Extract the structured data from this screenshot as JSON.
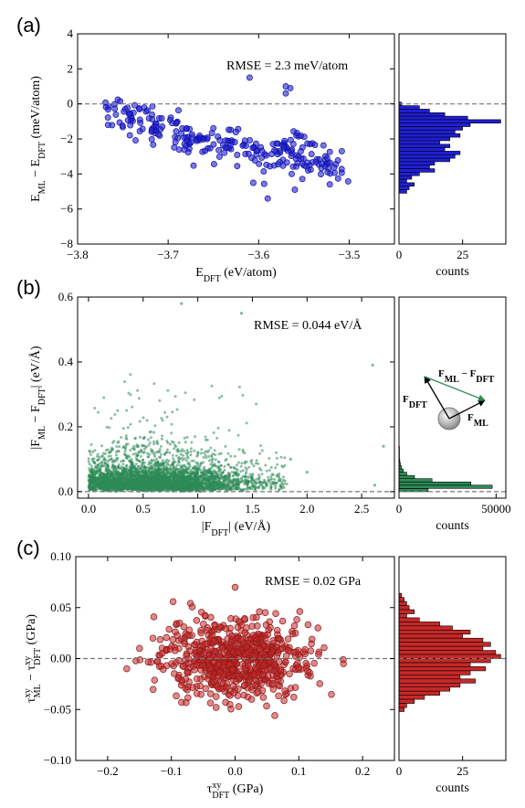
{
  "chart_data": [
    {
      "type": "scatter",
      "panel_label": "(a)",
      "annotation": "RMSE = 2.3 meV/atom",
      "xlabel": "E_DFT (eV/atom)",
      "ylabel": "E_ML − E_DFT (meV/atom)",
      "xlim": [
        -3.8,
        -3.45
      ],
      "ylim": [
        -8,
        4
      ],
      "xticks": [
        "−3.8",
        "−3.7",
        "−3.6",
        "−3.5"
      ],
      "yticks": [
        "−8",
        "−6",
        "−4",
        "−2",
        "0",
        "2",
        "4"
      ],
      "reference_line_y": 0,
      "color": "#1f1fd6",
      "clusters": [
        {
          "x": -3.77,
          "y": -0.2,
          "n": 8
        },
        {
          "x": -3.74,
          "y": -0.7,
          "n": 28
        },
        {
          "x": -3.715,
          "y": -1.3,
          "n": 30
        },
        {
          "x": -3.685,
          "y": -1.6,
          "n": 26
        },
        {
          "x": -3.66,
          "y": -2.0,
          "n": 22
        },
        {
          "x": -3.63,
          "y": -2.4,
          "n": 30
        },
        {
          "x": -3.6,
          "y": -2.8,
          "n": 22
        },
        {
          "x": -3.575,
          "y": -3.0,
          "n": 28
        },
        {
          "x": -3.555,
          "y": -2.3,
          "n": 20
        },
        {
          "x": -3.535,
          "y": -3.4,
          "n": 26
        },
        {
          "x": -3.52,
          "y": -3.6,
          "n": 16
        }
      ],
      "outliers": [
        {
          "x": -3.61,
          "y": 1.5
        },
        {
          "x": -3.57,
          "y": 1.0
        },
        {
          "x": -3.57,
          "y": 0.6
        },
        {
          "x": -3.565,
          "y": 0.9
        },
        {
          "x": -3.56,
          "y": -4.9
        },
        {
          "x": -3.59,
          "y": -5.4
        }
      ],
      "histogram": {
        "xlabel": "counts",
        "xticks": [
          "0",
          "25"
        ],
        "xlim": [
          0,
          42
        ],
        "bin_width": 0.2,
        "bins": [
          {
            "y": 0.0,
            "c": 1
          },
          {
            "y": -0.2,
            "c": 8
          },
          {
            "y": -0.4,
            "c": 12
          },
          {
            "y": -0.6,
            "c": 18
          },
          {
            "y": -0.8,
            "c": 27
          },
          {
            "y": -1.0,
            "c": 40
          },
          {
            "y": -1.2,
            "c": 28
          },
          {
            "y": -1.4,
            "c": 25
          },
          {
            "y": -1.6,
            "c": 22
          },
          {
            "y": -1.8,
            "c": 24
          },
          {
            "y": -2.0,
            "c": 20
          },
          {
            "y": -2.2,
            "c": 16
          },
          {
            "y": -2.4,
            "c": 20
          },
          {
            "y": -2.6,
            "c": 18
          },
          {
            "y": -2.8,
            "c": 24
          },
          {
            "y": -3.0,
            "c": 22
          },
          {
            "y": -3.2,
            "c": 20
          },
          {
            "y": -3.4,
            "c": 14
          },
          {
            "y": -3.6,
            "c": 12
          },
          {
            "y": -3.8,
            "c": 14
          },
          {
            "y": -4.0,
            "c": 8
          },
          {
            "y": -4.2,
            "c": 5
          },
          {
            "y": -4.4,
            "c": 3
          },
          {
            "y": -4.6,
            "c": 6
          },
          {
            "y": -4.8,
            "c": 4
          },
          {
            "y": -5.0,
            "c": 3
          }
        ]
      }
    },
    {
      "type": "scatter",
      "panel_label": "(b)",
      "annotation": "RMSE = 0.044 eV/Å",
      "xlabel": "|F_DFT| (eV/Å)",
      "ylabel": "|F_ML − F_DFT| (eV/Å)",
      "xlim": [
        -0.1,
        2.8
      ],
      "ylim": [
        -0.02,
        0.6
      ],
      "xticks": [
        "0.0",
        "0.5",
        "1.0",
        "1.5",
        "2.0",
        "2.5"
      ],
      "yticks": [
        "0.0",
        "0.2",
        "0.4",
        "0.6"
      ],
      "reference_line_y": 0,
      "color": "#2e8b57",
      "histogram": {
        "xlabel": "counts",
        "xticks": [
          "0",
          "50000"
        ],
        "xlim": [
          0,
          55000
        ],
        "bin_width": 0.01,
        "bins": [
          {
            "y": 0.005,
            "c": 15000
          },
          {
            "y": 0.015,
            "c": 48000
          },
          {
            "y": 0.025,
            "c": 37000
          },
          {
            "y": 0.035,
            "c": 17000
          },
          {
            "y": 0.045,
            "c": 8000
          },
          {
            "y": 0.055,
            "c": 4000
          },
          {
            "y": 0.065,
            "c": 2200
          },
          {
            "y": 0.075,
            "c": 1200
          },
          {
            "y": 0.085,
            "c": 700
          },
          {
            "y": 0.095,
            "c": 400
          },
          {
            "y": 0.105,
            "c": 250
          },
          {
            "y": 0.115,
            "c": 150
          },
          {
            "y": 0.125,
            "c": 100
          },
          {
            "y": 0.135,
            "c": 60
          }
        ]
      },
      "inset_labels": {
        "f_dft": "F",
        "f_dft_sub": "DFT",
        "f_ml": "F",
        "f_ml_sub": "ML",
        "diff": "F",
        "diff_sub1": "ML",
        "diff_mid": " − F",
        "diff_sub2": "DFT"
      }
    },
    {
      "type": "scatter",
      "panel_label": "(c)",
      "annotation": "RMSE =  0.02 GPa",
      "xlabel": "τ^xy_DFT (GPa)",
      "ylabel": "τ^xy_ML − τ^xy_DFT (GPa)",
      "xlim": [
        -0.25,
        0.25
      ],
      "ylim": [
        -0.1,
        0.1
      ],
      "xticks": [
        "−0.2",
        "−0.1",
        "0.0",
        "0.1",
        "0.2"
      ],
      "yticks": [
        "−0.10",
        "−0.05",
        "0.00",
        "0.05",
        "0.10"
      ],
      "reference_line_y": 0,
      "color": "#c62828",
      "histogram": {
        "xlabel": "counts",
        "xticks": [
          "0",
          "25"
        ],
        "xlim": [
          0,
          42
        ],
        "bin_width": 0.004,
        "bins": [
          {
            "y": 0.062,
            "c": 1
          },
          {
            "y": 0.058,
            "c": 2
          },
          {
            "y": 0.054,
            "c": 3
          },
          {
            "y": 0.05,
            "c": 4
          },
          {
            "y": 0.046,
            "c": 6
          },
          {
            "y": 0.042,
            "c": 3
          },
          {
            "y": 0.038,
            "c": 8
          },
          {
            "y": 0.034,
            "c": 16
          },
          {
            "y": 0.03,
            "c": 21
          },
          {
            "y": 0.026,
            "c": 28
          },
          {
            "y": 0.022,
            "c": 25
          },
          {
            "y": 0.018,
            "c": 33
          },
          {
            "y": 0.014,
            "c": 36
          },
          {
            "y": 0.01,
            "c": 33
          },
          {
            "y": 0.006,
            "c": 38
          },
          {
            "y": 0.002,
            "c": 40
          },
          {
            "y": -0.002,
            "c": 36
          },
          {
            "y": -0.006,
            "c": 28
          },
          {
            "y": -0.01,
            "c": 34
          },
          {
            "y": -0.014,
            "c": 28
          },
          {
            "y": -0.018,
            "c": 24
          },
          {
            "y": -0.022,
            "c": 30
          },
          {
            "y": -0.026,
            "c": 24
          },
          {
            "y": -0.03,
            "c": 20
          },
          {
            "y": -0.034,
            "c": 16
          },
          {
            "y": -0.038,
            "c": 10
          },
          {
            "y": -0.042,
            "c": 6
          },
          {
            "y": -0.046,
            "c": 3
          },
          {
            "y": -0.05,
            "c": 2
          }
        ]
      }
    }
  ]
}
